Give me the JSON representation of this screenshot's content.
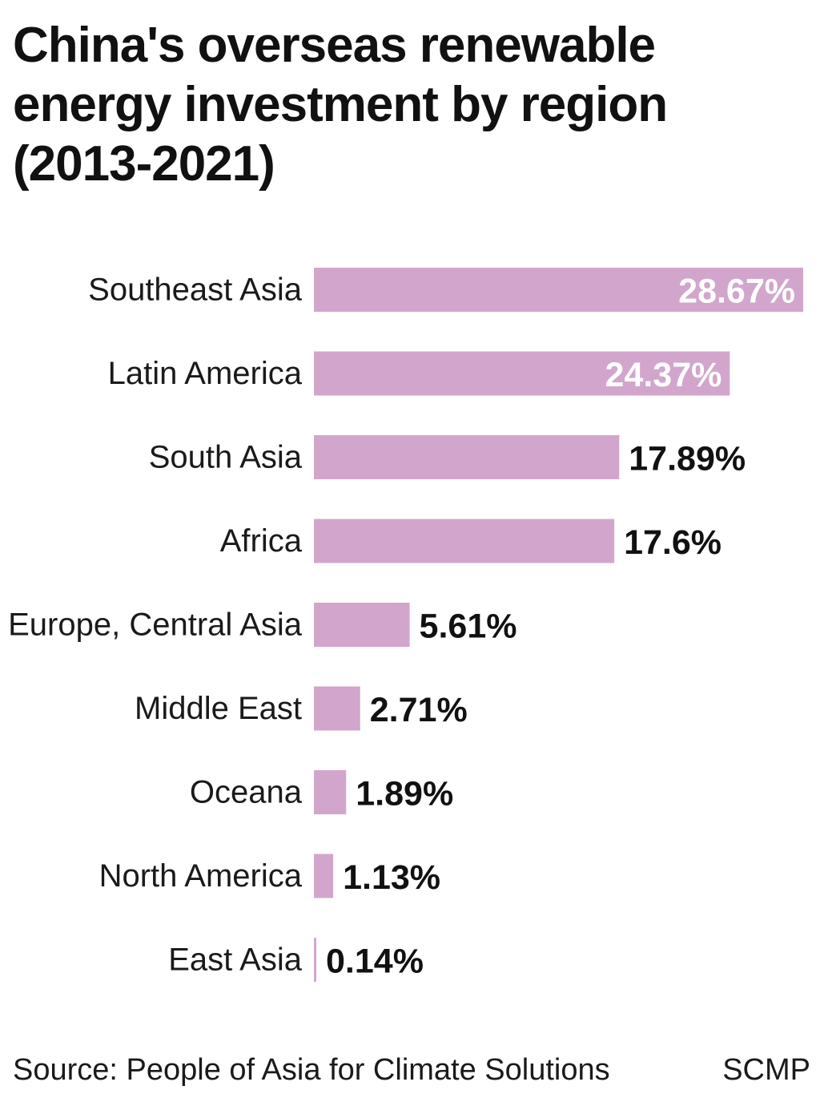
{
  "title": "China's overseas renewable energy investment by region (2013-2021)",
  "source": "Source: People of Asia for Climate Solutions",
  "brand": "SCMP",
  "colors": {
    "bar": "#d2a6cc",
    "label_inside": "#ffffff",
    "label_outside": "#111111",
    "text": "#1a1a1a"
  },
  "chart_data": {
    "type": "bar",
    "orientation": "horizontal",
    "unit": "%",
    "categories": [
      "Southeast Asia",
      "Latin America",
      "South Asia",
      "Africa",
      "Europe, Central Asia",
      "Middle East",
      "Oceana",
      "North America",
      "East Asia"
    ],
    "values": [
      28.67,
      24.37,
      17.89,
      17.6,
      5.61,
      2.71,
      1.89,
      1.13,
      0.14
    ],
    "data_labels": [
      "28.67%",
      "24.37%",
      "17.89%",
      "17.6%",
      "5.61%",
      "2.71%",
      "1.89%",
      "1.13%",
      "0.14%"
    ],
    "grid": false,
    "axes_visible": false
  }
}
